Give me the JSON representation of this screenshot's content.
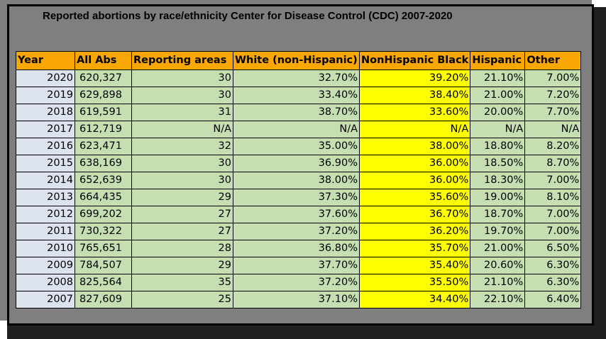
{
  "title": "Reported abortions by race/ethnicity Center for Disease Control (CDC) 2007-2020",
  "columns": [
    "Year",
    "All Abs",
    "Reporting areas",
    "White (non-Hispanic)",
    "NonHispanic Black",
    "Hispanic",
    "Other"
  ],
  "rows": [
    [
      "2020",
      "620,327",
      "30",
      "32.70%",
      "39.20%",
      "21.10%",
      "7.00%"
    ],
    [
      "2019",
      "629,898",
      "30",
      "33.40%",
      "38.40%",
      "21.00%",
      "7.20%"
    ],
    [
      "2018",
      "619,591",
      "31",
      "38.70%",
      "33.60%",
      "20.00%",
      "7.70%"
    ],
    [
      "2017",
      "612,719",
      "N/A",
      "N/A",
      "N/A",
      "N/A",
      "N/A"
    ],
    [
      "2016",
      "623,471",
      "32",
      "35.00%",
      "38.00%",
      "18.80%",
      "8.20%"
    ],
    [
      "2015",
      "638,169",
      "30",
      "36.90%",
      "36.00%",
      "18.50%",
      "8.70%"
    ],
    [
      "2014",
      "652,639",
      "30",
      "38.00%",
      "36.00%",
      "18.30%",
      "7.00%"
    ],
    [
      "2013",
      "664,435",
      "29",
      "37.30%",
      "35.60%",
      "19.00%",
      "8.10%"
    ],
    [
      "2012",
      "699,202",
      "27",
      "37.60%",
      "36.70%",
      "18.70%",
      "7.00%"
    ],
    [
      "2011",
      "730,322",
      "27",
      "37.20%",
      "36.20%",
      "19.70%",
      "7.00%"
    ],
    [
      "2010",
      "765,651",
      "28",
      "36.80%",
      "35.70%",
      "21.00%",
      "6.50%"
    ],
    [
      "2009",
      "784,507",
      "29",
      "37.70%",
      "35.40%",
      "20.60%",
      "6.30%"
    ],
    [
      "2008",
      "825,564",
      "35",
      "37.20%",
      "35.50%",
      "21.10%",
      "6.30%"
    ],
    [
      "2007",
      "827,609",
      "25",
      "37.10%",
      "34.40%",
      "22.10%",
      "6.40%"
    ]
  ],
  "colors": {
    "header_bg": "#f8a705",
    "cell_bg": "#c5dfb2",
    "year_bg": "#dde3ee",
    "highlight_bg": "#ffff00",
    "frame_bg": "#7f7f7f"
  }
}
